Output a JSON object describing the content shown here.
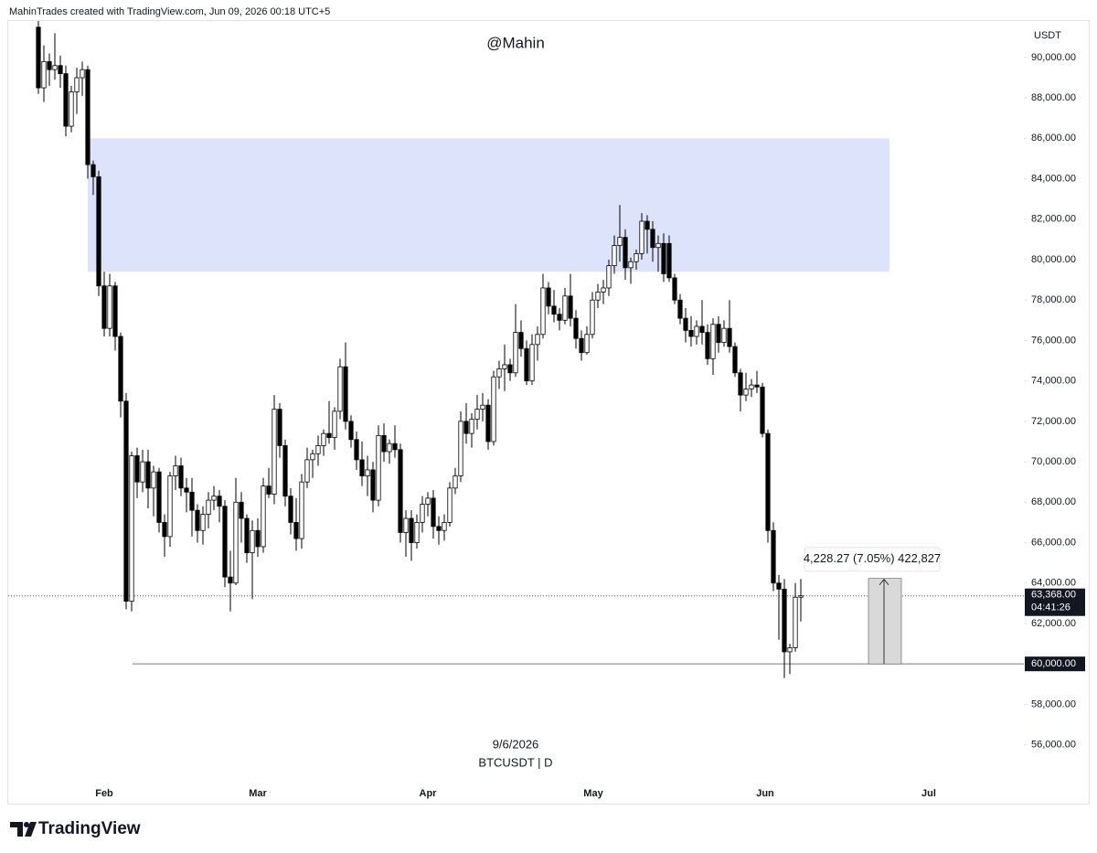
{
  "chart_data": {
    "type": "candlestick",
    "header": "MahinTrades created with TradingView.com, Jun 09, 2026 00:18 UTC+5",
    "watermark": "@Mahin",
    "date_label": "9/6/2026",
    "symbol": "BTCUSDT | D",
    "brand": "TradingView",
    "currency": "USDT",
    "up_color": "#ffffff",
    "down_color": "#000000",
    "zone_color": "#dde3fb",
    "ylim": [
      54400,
      91850
    ],
    "yticks": [
      {
        "value": 90000,
        "label": "90,000.00"
      },
      {
        "value": 88000,
        "label": "88,000.00"
      },
      {
        "value": 86000,
        "label": "86,000.00"
      },
      {
        "value": 84000,
        "label": "84,000.00"
      },
      {
        "value": 82000,
        "label": "82,000.00"
      },
      {
        "value": 80000,
        "label": "80,000.00"
      },
      {
        "value": 78000,
        "label": "78,000.00"
      },
      {
        "value": 76000,
        "label": "76,000.00"
      },
      {
        "value": 74000,
        "label": "74,000.00"
      },
      {
        "value": 72000,
        "label": "72,000.00"
      },
      {
        "value": 70000,
        "label": "70,000.00"
      },
      {
        "value": 68000,
        "label": "68,000.00"
      },
      {
        "value": 66000,
        "label": "66,000.00"
      },
      {
        "value": 64000,
        "label": "64,000.00"
      },
      {
        "value": 62000,
        "label": "62,000.00"
      },
      {
        "value": 58000,
        "label": "58,000.00"
      },
      {
        "value": 56000,
        "label": "56,000.00"
      }
    ],
    "x_labels": [
      "Feb",
      "Mar",
      "Apr",
      "May",
      "Jun",
      "Jul"
    ],
    "zone": {
      "low": 79400,
      "high": 86000
    },
    "level": {
      "value": 60000,
      "label": "60,000.00"
    },
    "last": {
      "value": 63368,
      "label": "63,368.00",
      "countdown": "04:41:26"
    },
    "measure": {
      "from": 60000,
      "change": 4228.27,
      "label": "4,228.27 (7.05%) 422,827"
    },
    "ohlc": [
      [
        91500,
        92200,
        88200,
        88500
      ],
      [
        88500,
        90600,
        87800,
        89800
      ],
      [
        89800,
        90200,
        88600,
        89400
      ],
      [
        89400,
        91200,
        88900,
        89600
      ],
      [
        89600,
        90100,
        88500,
        89200
      ],
      [
        89200,
        89600,
        86100,
        86600
      ],
      [
        86600,
        88600,
        86300,
        88300
      ],
      [
        88300,
        89500,
        87200,
        89000
      ],
      [
        89000,
        89800,
        88100,
        89400
      ],
      [
        89400,
        89600,
        84000,
        84700
      ],
      [
        84700,
        84900,
        83200,
        84100
      ],
      [
        84100,
        84400,
        78200,
        78700
      ],
      [
        78700,
        79400,
        76200,
        76600
      ],
      [
        76600,
        79300,
        76200,
        78700
      ],
      [
        78700,
        78900,
        75500,
        76200
      ],
      [
        76200,
        76400,
        72200,
        73000
      ],
      [
        73000,
        73400,
        62700,
        63100
      ],
      [
        63100,
        70500,
        62600,
        70300
      ],
      [
        70300,
        70700,
        68200,
        69000
      ],
      [
        69000,
        70600,
        68500,
        70000
      ],
      [
        70000,
        70600,
        67700,
        68700
      ],
      [
        68700,
        69800,
        67300,
        69500
      ],
      [
        69500,
        69700,
        66500,
        67000
      ],
      [
        67000,
        67400,
        65300,
        66300
      ],
      [
        66300,
        69500,
        65800,
        69300
      ],
      [
        69300,
        70300,
        68600,
        69800
      ],
      [
        69800,
        70200,
        68300,
        68700
      ],
      [
        68700,
        69200,
        67500,
        68500
      ],
      [
        68500,
        69200,
        66300,
        67600
      ],
      [
        67600,
        67900,
        66000,
        66600
      ],
      [
        66600,
        67800,
        65900,
        67400
      ],
      [
        67400,
        68500,
        66700,
        68100
      ],
      [
        68100,
        68800,
        67600,
        68300
      ],
      [
        68300,
        68600,
        67000,
        67800
      ],
      [
        67800,
        68100,
        63800,
        64300
      ],
      [
        64300,
        65600,
        62600,
        64000
      ],
      [
        64000,
        69200,
        63900,
        68000
      ],
      [
        68000,
        68500,
        66000,
        67200
      ],
      [
        67200,
        67400,
        65000,
        65500
      ],
      [
        65500,
        67100,
        63200,
        66600
      ],
      [
        66600,
        67200,
        65300,
        65800
      ],
      [
        65800,
        69200,
        65500,
        68800
      ],
      [
        68800,
        69700,
        68200,
        68400
      ],
      [
        68400,
        73300,
        67900,
        72600
      ],
      [
        72600,
        72900,
        70200,
        70800
      ],
      [
        70800,
        71100,
        67800,
        68300
      ],
      [
        68300,
        68700,
        66400,
        67000
      ],
      [
        67000,
        68200,
        65600,
        66200
      ],
      [
        66200,
        69400,
        65700,
        69000
      ],
      [
        69000,
        70700,
        68700,
        70100
      ],
      [
        70100,
        70600,
        69200,
        70400
      ],
      [
        70400,
        71300,
        69800,
        70800
      ],
      [
        70800,
        71600,
        70300,
        71400
      ],
      [
        71400,
        73000,
        70900,
        71200
      ],
      [
        71200,
        72700,
        70600,
        72500
      ],
      [
        72500,
        75100,
        72100,
        74700
      ],
      [
        74700,
        75900,
        71600,
        72000
      ],
      [
        72000,
        72300,
        70700,
        71100
      ],
      [
        71100,
        71500,
        69600,
        70100
      ],
      [
        70100,
        71000,
        68800,
        69300
      ],
      [
        69300,
        70300,
        68300,
        69600
      ],
      [
        69600,
        70000,
        67500,
        68100
      ],
      [
        68100,
        71800,
        67800,
        71300
      ],
      [
        71300,
        71900,
        70000,
        70500
      ],
      [
        70500,
        71100,
        69900,
        70900
      ],
      [
        70900,
        71800,
        70200,
        70600
      ],
      [
        70600,
        70900,
        66000,
        66500
      ],
      [
        66500,
        67600,
        65300,
        67200
      ],
      [
        67200,
        67600,
        65100,
        66000
      ],
      [
        66000,
        67400,
        65700,
        67000
      ],
      [
        67000,
        68300,
        66500,
        67900
      ],
      [
        67900,
        68500,
        67300,
        68200
      ],
      [
        68200,
        68600,
        66200,
        66800
      ],
      [
        66800,
        67300,
        65900,
        66600
      ],
      [
        66600,
        67400,
        66100,
        67000
      ],
      [
        67000,
        69000,
        66800,
        68700
      ],
      [
        68700,
        69700,
        68400,
        69300
      ],
      [
        69300,
        72500,
        69000,
        72000
      ],
      [
        72000,
        72900,
        70900,
        71400
      ],
      [
        71400,
        72400,
        70700,
        72100
      ],
      [
        72100,
        73300,
        71600,
        72600
      ],
      [
        72600,
        73400,
        72000,
        72800
      ],
      [
        72800,
        73100,
        70600,
        71000
      ],
      [
        71000,
        74500,
        70800,
        74200
      ],
      [
        74200,
        75000,
        73600,
        74600
      ],
      [
        74600,
        75800,
        73500,
        74800
      ],
      [
        74800,
        75100,
        74000,
        74400
      ],
      [
        74400,
        77800,
        74200,
        76400
      ],
      [
        76400,
        77000,
        75200,
        75600
      ],
      [
        75600,
        76000,
        73800,
        74000
      ],
      [
        74000,
        76300,
        73800,
        75800
      ],
      [
        75800,
        76700,
        75000,
        76300
      ],
      [
        76300,
        79300,
        76100,
        78600
      ],
      [
        78600,
        78900,
        77300,
        77700
      ],
      [
        77700,
        78500,
        76900,
        77300
      ],
      [
        77300,
        77600,
        76500,
        77000
      ],
      [
        77000,
        78600,
        76800,
        78200
      ],
      [
        78200,
        79300,
        76700,
        77100
      ],
      [
        77100,
        77500,
        75600,
        76100
      ],
      [
        76100,
        76500,
        75000,
        75400
      ],
      [
        75400,
        76700,
        75300,
        76300
      ],
      [
        76300,
        78400,
        76100,
        78000
      ],
      [
        78000,
        78800,
        77600,
        78400
      ],
      [
        78400,
        79000,
        77800,
        78600
      ],
      [
        78600,
        80000,
        78200,
        79700
      ],
      [
        79700,
        81200,
        79300,
        80700
      ],
      [
        80700,
        82700,
        79900,
        81100
      ],
      [
        81100,
        81500,
        79000,
        79600
      ],
      [
        79600,
        80100,
        78800,
        79900
      ],
      [
        79900,
        80500,
        79500,
        80300
      ],
      [
        80300,
        82300,
        80000,
        81900
      ],
      [
        81900,
        82200,
        80300,
        81500
      ],
      [
        81500,
        81900,
        79900,
        80600
      ],
      [
        80600,
        81200,
        79400,
        80800
      ],
      [
        80800,
        81300,
        78900,
        79300
      ],
      [
        80800,
        81200,
        78900,
        79100
      ],
      [
        79100,
        79300,
        77800,
        78000
      ],
      [
        78000,
        78300,
        76800,
        77100
      ],
      [
        77100,
        77600,
        75900,
        76500
      ],
      [
        76500,
        77200,
        75700,
        76200
      ],
      [
        76200,
        77000,
        75800,
        76700
      ],
      [
        76700,
        78000,
        75800,
        76400
      ],
      [
        76400,
        76800,
        74800,
        75100
      ],
      [
        75100,
        77100,
        74300,
        76800
      ],
      [
        76800,
        77200,
        75400,
        75900
      ],
      [
        75900,
        77000,
        75700,
        76600
      ],
      [
        76600,
        78000,
        75400,
        75700
      ],
      [
        75700,
        75900,
        74200,
        74400
      ],
      [
        74400,
        74600,
        72500,
        73300
      ],
      [
        73300,
        74400,
        73000,
        73600
      ],
      [
        73600,
        74100,
        73200,
        73800
      ],
      [
        73800,
        74500,
        73400,
        73700
      ],
      [
        73700,
        73900,
        71200,
        71400
      ],
      [
        71400,
        71600,
        66000,
        66600
      ],
      [
        66600,
        67000,
        63600,
        64000
      ],
      [
        64000,
        64400,
        61200,
        63700
      ],
      [
        63700,
        64200,
        59300,
        60600
      ],
      [
        60600,
        61000,
        59500,
        60800
      ],
      [
        60800,
        64000,
        60600,
        63300
      ],
      [
        63300,
        64200,
        62100,
        63368
      ]
    ]
  }
}
